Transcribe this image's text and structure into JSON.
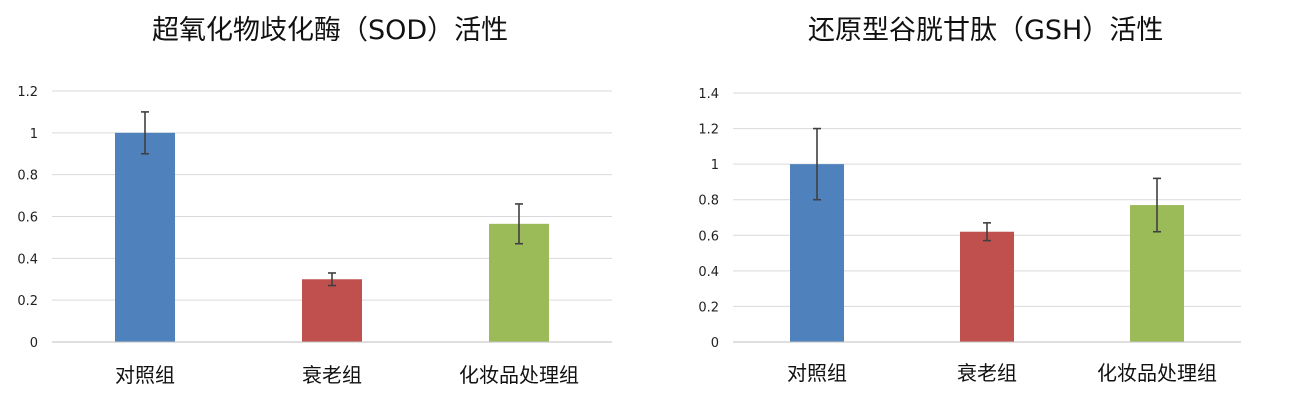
{
  "chart_data": [
    {
      "type": "bar",
      "title": "超氧化物歧化酶（SOD）活性",
      "categories": [
        "对照组",
        "衰老组",
        "化妆品处理组"
      ],
      "values": [
        1.0,
        0.3,
        0.565
      ],
      "errors": [
        0.1,
        0.03,
        0.095
      ],
      "colors": [
        "#4F81BD",
        "#C0504D",
        "#9BBB59"
      ],
      "ylim": [
        0,
        1.2
      ],
      "yticks": [
        "0",
        "0.2",
        "0.4",
        "0.6",
        "0.8",
        "1",
        "1.2"
      ],
      "grid": true,
      "xlabel": "",
      "ylabel": ""
    },
    {
      "type": "bar",
      "title": "还原型谷胱甘肽（GSH）活性",
      "categories": [
        "对照组",
        "衰老组",
        "化妆品处理组"
      ],
      "values": [
        1.0,
        0.62,
        0.77
      ],
      "errors": [
        0.2,
        0.05,
        0.15
      ],
      "colors": [
        "#4F81BD",
        "#C0504D",
        "#9BBB59"
      ],
      "ylim": [
        0,
        1.4
      ],
      "yticks": [
        "0",
        "0.2",
        "0.4",
        "0.6",
        "0.8",
        "1",
        "1.2",
        "1.4"
      ],
      "grid": true,
      "xlabel": "",
      "ylabel": ""
    }
  ]
}
